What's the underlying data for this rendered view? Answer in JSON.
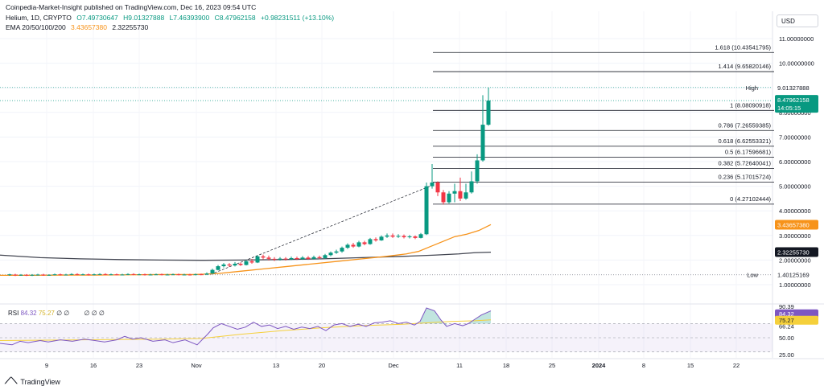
{
  "header": {
    "publisher_line": "Coinpedia-Market-Insight published on TradingView.com, Dec 16, 2023 09:54 UTC",
    "symbol": "Helium, 1D, CRYPTO",
    "open": "O7.49730647",
    "high": "H9.01327888",
    "low": "L7.46393900",
    "close": "C8.47962158",
    "change": "+0.98231511 (+13.10%)",
    "ema_label": "EMA 20/50/100/200",
    "ema_v1": "3.43657380",
    "ema_v2": "2.32255730"
  },
  "currency": "USD",
  "rsi": {
    "label": "RSI",
    "v1": "84.32",
    "v2": "75.27",
    "extra": "∅ ∅",
    "extra2": "∅ ∅ ∅",
    "axis": [
      "90.39",
      "66.24",
      "50.00",
      "25.00"
    ],
    "badge1": "84.32",
    "badge2": "75.27"
  },
  "footer": {
    "brand": "TradingView"
  },
  "colors": {
    "up": "#089981",
    "down": "#f23645",
    "ema20": "#f7931a",
    "ema200": "#434651",
    "fib": "#131722",
    "rsi": "#7e57c2",
    "rsi_ma": "#f5d03b"
  },
  "chart_data": {
    "type": "candlestick",
    "symbol": "Helium",
    "y_ticks": [
      "11.00000000",
      "10.00000000",
      "9.00000000",
      "8.00000000",
      "7.00000000",
      "6.00000000",
      "5.00000000",
      "4.00000000",
      "3.00000000",
      "2.00000000",
      "1.00000000"
    ],
    "x_ticks": [
      "9",
      "16",
      "23",
      "Nov",
      "13",
      "20",
      "Dec",
      "11",
      "18",
      "25",
      "2024",
      "8",
      "15",
      "22"
    ],
    "fib_levels": [
      {
        "label": "1.618 (10.43541795)",
        "value": 10.43541795
      },
      {
        "label": "1.414 (9.65820146)",
        "value": 9.65820146
      },
      {
        "label": "1 (8.08090918)",
        "value": 8.08090918
      },
      {
        "label": "0.786 (7.26559385)",
        "value": 7.26559385
      },
      {
        "label": "0.618 (6.62553321)",
        "value": 6.62553321
      },
      {
        "label": "0.5 (6.17596681)",
        "value": 6.17596681
      },
      {
        "label": "0.382 (5.72640041)",
        "value": 5.72640041
      },
      {
        "label": "0.236 (5.17015724)",
        "value": 5.17015724
      },
      {
        "label": "0 (4.27102444)",
        "value": 4.27102444
      }
    ],
    "high_label": "High",
    "high_value": "9.01327888",
    "low_label": "Low",
    "low_value": "1.40125169",
    "last_price": "8.47962158",
    "countdown": "14:05:15",
    "ema_short_value": "3.43657380",
    "ema_long_value": "2.32255730",
    "ema_short": [
      [
        0,
        1.38
      ],
      [
        40,
        1.38
      ],
      [
        80,
        1.39
      ],
      [
        120,
        1.39
      ],
      [
        160,
        1.4
      ],
      [
        200,
        1.41
      ],
      [
        240,
        1.41
      ],
      [
        270,
        1.45
      ],
      [
        300,
        1.55
      ],
      [
        330,
        1.65
      ],
      [
        360,
        1.75
      ],
      [
        390,
        1.85
      ],
      [
        420,
        1.95
      ],
      [
        450,
        2.05
      ],
      [
        480,
        2.15
      ],
      [
        505,
        2.25
      ],
      [
        520,
        2.35
      ],
      [
        535,
        2.55
      ],
      [
        550,
        2.75
      ],
      [
        565,
        2.95
      ],
      [
        580,
        3.05
      ],
      [
        595,
        3.2
      ],
      [
        610,
        3.44
      ]
    ],
    "ema_long": [
      [
        0,
        2.2
      ],
      [
        50,
        2.1
      ],
      [
        100,
        2.05
      ],
      [
        150,
        2.02
      ],
      [
        200,
        2.0
      ],
      [
        250,
        1.99
      ],
      [
        300,
        2.0
      ],
      [
        350,
        2.02
      ],
      [
        400,
        2.05
      ],
      [
        450,
        2.1
      ],
      [
        500,
        2.15
      ],
      [
        540,
        2.2
      ],
      [
        570,
        2.25
      ],
      [
        590,
        2.3
      ],
      [
        610,
        2.32
      ]
    ],
    "candles": [
      [
        12,
        1.4,
        1.42,
        1.36,
        1.44
      ],
      [
        19,
        1.41,
        1.39,
        1.35,
        1.44
      ],
      [
        26,
        1.39,
        1.4,
        1.36,
        1.43
      ],
      [
        33,
        1.4,
        1.38,
        1.35,
        1.43
      ],
      [
        40,
        1.38,
        1.4,
        1.35,
        1.43
      ],
      [
        47,
        1.4,
        1.41,
        1.37,
        1.44
      ],
      [
        54,
        1.41,
        1.39,
        1.36,
        1.44
      ],
      [
        61,
        1.39,
        1.4,
        1.36,
        1.42
      ],
      [
        68,
        1.4,
        1.42,
        1.38,
        1.45
      ],
      [
        75,
        1.42,
        1.4,
        1.37,
        1.45
      ],
      [
        82,
        1.4,
        1.41,
        1.38,
        1.44
      ],
      [
        89,
        1.41,
        1.43,
        1.39,
        1.46
      ],
      [
        96,
        1.43,
        1.41,
        1.38,
        1.46
      ],
      [
        103,
        1.41,
        1.42,
        1.39,
        1.45
      ],
      [
        110,
        1.42,
        1.4,
        1.37,
        1.45
      ],
      [
        117,
        1.4,
        1.42,
        1.38,
        1.45
      ],
      [
        124,
        1.42,
        1.43,
        1.4,
        1.46
      ],
      [
        131,
        1.43,
        1.41,
        1.39,
        1.46
      ],
      [
        138,
        1.41,
        1.42,
        1.39,
        1.45
      ],
      [
        145,
        1.42,
        1.4,
        1.38,
        1.45
      ],
      [
        152,
        1.4,
        1.41,
        1.38,
        1.44
      ],
      [
        159,
        1.41,
        1.43,
        1.39,
        1.46
      ],
      [
        166,
        1.43,
        1.41,
        1.39,
        1.46
      ],
      [
        173,
        1.41,
        1.42,
        1.39,
        1.45
      ],
      [
        180,
        1.42,
        1.4,
        1.37,
        1.45
      ],
      [
        187,
        1.4,
        1.41,
        1.38,
        1.44
      ],
      [
        194,
        1.41,
        1.42,
        1.39,
        1.45
      ],
      [
        201,
        1.42,
        1.4,
        1.38,
        1.45
      ],
      [
        208,
        1.4,
        1.41,
        1.38,
        1.44
      ],
      [
        215,
        1.41,
        1.42,
        1.39,
        1.45
      ],
      [
        222,
        1.42,
        1.4,
        1.38,
        1.45
      ],
      [
        229,
        1.4,
        1.41,
        1.38,
        1.44
      ],
      [
        236,
        1.41,
        1.4,
        1.37,
        1.44
      ],
      [
        243,
        1.4,
        1.42,
        1.38,
        1.45
      ],
      [
        250,
        1.42,
        1.41,
        1.39,
        1.45
      ],
      [
        257,
        1.41,
        1.45,
        1.39,
        1.5
      ],
      [
        264,
        1.45,
        1.6,
        1.44,
        1.65
      ],
      [
        271,
        1.6,
        1.75,
        1.58,
        1.8
      ],
      [
        278,
        1.75,
        1.82,
        1.7,
        1.88
      ],
      [
        285,
        1.82,
        1.78,
        1.72,
        1.88
      ],
      [
        292,
        1.78,
        1.85,
        1.74,
        1.92
      ],
      [
        299,
        1.85,
        1.8,
        1.76,
        1.9
      ],
      [
        306,
        1.8,
        1.95,
        1.78,
        2.0
      ],
      [
        313,
        1.95,
        1.9,
        1.85,
        2.05
      ],
      [
        320,
        1.9,
        2.15,
        1.88,
        2.2
      ],
      [
        327,
        2.15,
        2.1,
        2.02,
        2.22
      ],
      [
        334,
        2.1,
        2.05,
        1.98,
        2.18
      ],
      [
        341,
        2.05,
        2.02,
        1.96,
        2.12
      ],
      [
        348,
        2.02,
        2.06,
        1.98,
        2.12
      ],
      [
        355,
        2.06,
        2.03,
        1.98,
        2.12
      ],
      [
        362,
        2.03,
        2.08,
        2.0,
        2.14
      ],
      [
        369,
        2.08,
        2.04,
        2.0,
        2.14
      ],
      [
        376,
        2.04,
        2.1,
        2.01,
        2.16
      ],
      [
        383,
        2.1,
        2.05,
        2.01,
        2.16
      ],
      [
        390,
        2.05,
        2.12,
        2.02,
        2.18
      ],
      [
        397,
        2.12,
        2.08,
        2.03,
        2.18
      ],
      [
        404,
        2.08,
        2.2,
        2.05,
        2.25
      ],
      [
        411,
        2.2,
        2.3,
        2.15,
        2.35
      ],
      [
        418,
        2.3,
        2.35,
        2.25,
        2.42
      ],
      [
        425,
        2.35,
        2.5,
        2.3,
        2.55
      ],
      [
        432,
        2.5,
        2.62,
        2.45,
        2.68
      ],
      [
        439,
        2.62,
        2.55,
        2.5,
        2.7
      ],
      [
        446,
        2.55,
        2.72,
        2.52,
        2.78
      ],
      [
        453,
        2.72,
        2.65,
        2.6,
        2.78
      ],
      [
        460,
        2.65,
        2.85,
        2.62,
        2.9
      ],
      [
        467,
        2.85,
        2.8,
        2.75,
        2.92
      ],
      [
        474,
        2.8,
        2.95,
        2.78,
        3.0
      ],
      [
        481,
        2.95,
        3.0,
        2.9,
        3.08
      ],
      [
        488,
        3.0,
        2.95,
        2.9,
        3.08
      ],
      [
        495,
        2.95,
        2.98,
        2.9,
        3.05
      ],
      [
        502,
        2.98,
        2.93,
        2.88,
        3.04
      ],
      [
        509,
        2.93,
        2.96,
        2.88,
        3.02
      ],
      [
        516,
        2.96,
        2.9,
        2.85,
        3.0
      ],
      [
        523,
        2.9,
        3.05,
        2.88,
        3.1
      ],
      [
        530,
        3.05,
        5.0,
        3.02,
        5.15
      ],
      [
        537,
        5.0,
        5.15,
        4.9,
        5.9
      ],
      [
        544,
        5.15,
        4.75,
        4.6,
        5.2
      ],
      [
        551,
        4.75,
        4.35,
        4.25,
        4.85
      ],
      [
        558,
        4.35,
        4.7,
        4.3,
        4.8
      ],
      [
        565,
        4.7,
        4.8,
        4.35,
        5.1
      ],
      [
        572,
        4.8,
        4.5,
        4.4,
        5.35
      ],
      [
        579,
        4.5,
        4.75,
        4.45,
        5.1
      ],
      [
        586,
        4.75,
        5.2,
        4.7,
        5.6
      ],
      [
        593,
        5.2,
        6.05,
        5.1,
        6.3
      ],
      [
        600,
        6.05,
        7.5,
        6.0,
        8.7
      ],
      [
        607,
        7.5,
        8.48,
        7.46,
        9.01
      ]
    ]
  }
}
